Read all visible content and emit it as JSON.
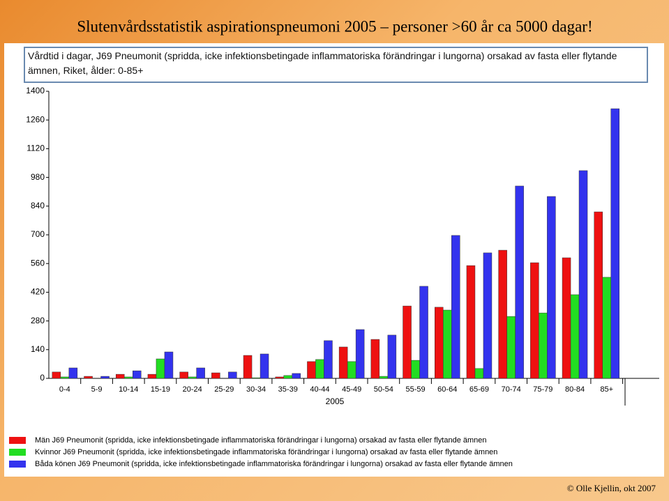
{
  "slide": {
    "title": "Slutenvårdsstatistik aspirationspneumoni 2005 – personer >60 år ca 5000 dagar!",
    "footer": "© Olle Kjellin, okt 2007"
  },
  "chart_data": {
    "type": "bar",
    "title": "Vårdtid i dagar, J69 Pneumonit (spridda, icke infektionsbetingade inflammatoriska förändringar i lungorna) orsakad av fasta eller flytande ämnen, Riket, ålder: 0-85+",
    "xlabel": "2005",
    "categories": [
      "0-4",
      "5-9",
      "10-14",
      "15-19",
      "20-24",
      "25-29",
      "30-34",
      "35-39",
      "40-44",
      "45-49",
      "50-54",
      "55-59",
      "60-64",
      "65-69",
      "70-74",
      "75-79",
      "80-84",
      "85+"
    ],
    "series": [
      {
        "name": "Män J69 Pneumonit (spridda, icke infektionsbetingade inflammatoriska förändringar i lungorna) orsakad av fasta eller flytande ämnen",
        "color": "#ee1111",
        "values": [
          31,
          10,
          20,
          20,
          31,
          27,
          112,
          7,
          82,
          153,
          190,
          353,
          347,
          550,
          625,
          564,
          588,
          812
        ]
      },
      {
        "name": "Kvinnor J69 Pneumonit (spridda, icke infektionsbetingade inflammatoriska förändringar i lungorna) orsakad av fasta eller flytande ämnen",
        "color": "#22dd22",
        "values": [
          7,
          0,
          7,
          95,
          7,
          0,
          3,
          14,
          92,
          82,
          10,
          88,
          333,
          48,
          302,
          319,
          408,
          493
        ]
      },
      {
        "name": "Båda könen J69 Pneumonit (spridda, icke infektionsbetingade inflammatoriska förändringar i lungorna) orsakad av fasta eller flytande ämnen",
        "color": "#3333ee",
        "values": [
          51,
          10,
          37,
          129,
          51,
          31,
          119,
          24,
          184,
          238,
          211,
          449,
          697,
          612,
          938,
          887,
          1013,
          1315
        ]
      }
    ],
    "ylim": [
      0,
      1400
    ],
    "yticks": [
      0,
      140,
      280,
      420,
      560,
      700,
      840,
      980,
      1120,
      1260,
      1400
    ],
    "grid": false
  }
}
